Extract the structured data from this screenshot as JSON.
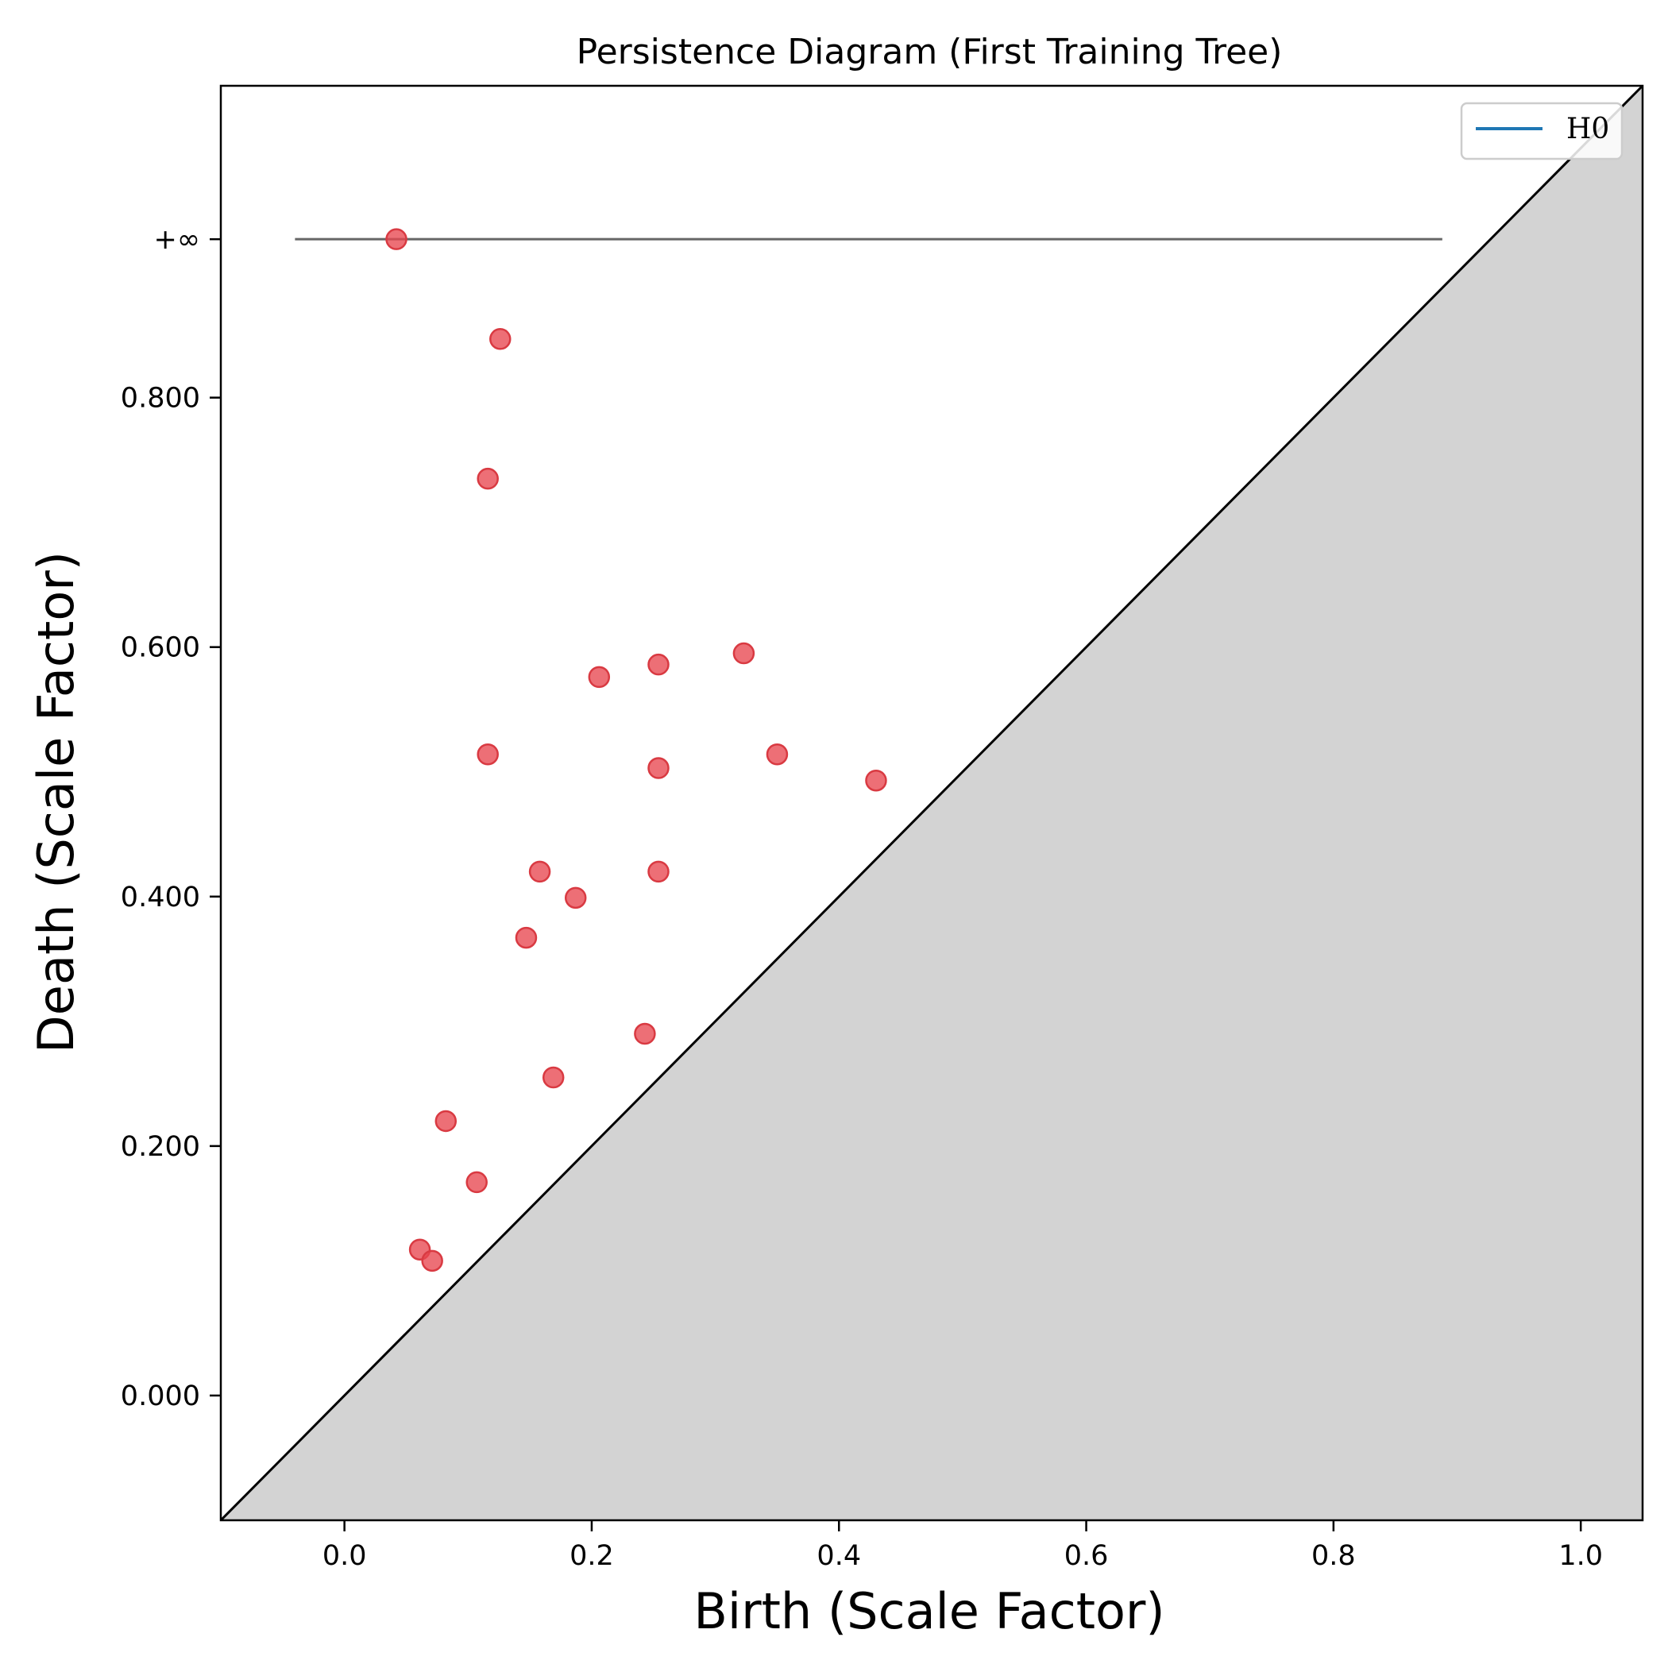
{
  "chart_data": {
    "type": "scatter",
    "title": "Persistence Diagram (First Training Tree)",
    "xlabel": "Birth (Scale Factor)",
    "ylabel": "Death (Scale Factor)",
    "xlim": [
      -0.1,
      1.05
    ],
    "ylim": [
      -0.1,
      1.05
    ],
    "x_ticks": [
      0.0,
      0.2,
      0.4,
      0.6,
      0.8,
      1.0
    ],
    "x_tick_labels": [
      "0.0",
      "0.2",
      "0.4",
      "0.6",
      "0.8",
      "1.0"
    ],
    "y_ticks": [
      0.0,
      0.2,
      0.4,
      0.6,
      0.8
    ],
    "y_tick_labels": [
      "0.000",
      "0.200",
      "0.400",
      "0.600",
      "0.800"
    ],
    "infinity_level": 0.927,
    "infinity_label": "+∞",
    "infinity_line_x": [
      -0.04,
      0.888
    ],
    "diagonal": true,
    "grid": false,
    "legend": {
      "placement": "top-right",
      "entries": [
        {
          "label": "H0",
          "color": "#1f77b4"
        }
      ]
    },
    "colors": {
      "points": "#e8474f",
      "points_edge": "#d93a42",
      "infinity_line": "#666666",
      "below_diagonal": "#d3d3d3",
      "diagonal": "#000000",
      "legend_line": "#1f77b4"
    },
    "series": [
      {
        "points": [
          {
            "x": 0.042,
            "y": 0.927
          },
          {
            "x": 0.126,
            "y": 0.847
          },
          {
            "x": 0.116,
            "y": 0.735
          },
          {
            "x": 0.323,
            "y": 0.595
          },
          {
            "x": 0.254,
            "y": 0.586
          },
          {
            "x": 0.206,
            "y": 0.576
          },
          {
            "x": 0.116,
            "y": 0.514
          },
          {
            "x": 0.35,
            "y": 0.514
          },
          {
            "x": 0.254,
            "y": 0.503
          },
          {
            "x": 0.43,
            "y": 0.493
          },
          {
            "x": 0.158,
            "y": 0.42
          },
          {
            "x": 0.254,
            "y": 0.42
          },
          {
            "x": 0.187,
            "y": 0.399
          },
          {
            "x": 0.147,
            "y": 0.367
          },
          {
            "x": 0.243,
            "y": 0.29
          },
          {
            "x": 0.169,
            "y": 0.255
          },
          {
            "x": 0.082,
            "y": 0.22
          },
          {
            "x": 0.107,
            "y": 0.171
          },
          {
            "x": 0.061,
            "y": 0.117
          },
          {
            "x": 0.071,
            "y": 0.108
          }
        ]
      }
    ]
  }
}
